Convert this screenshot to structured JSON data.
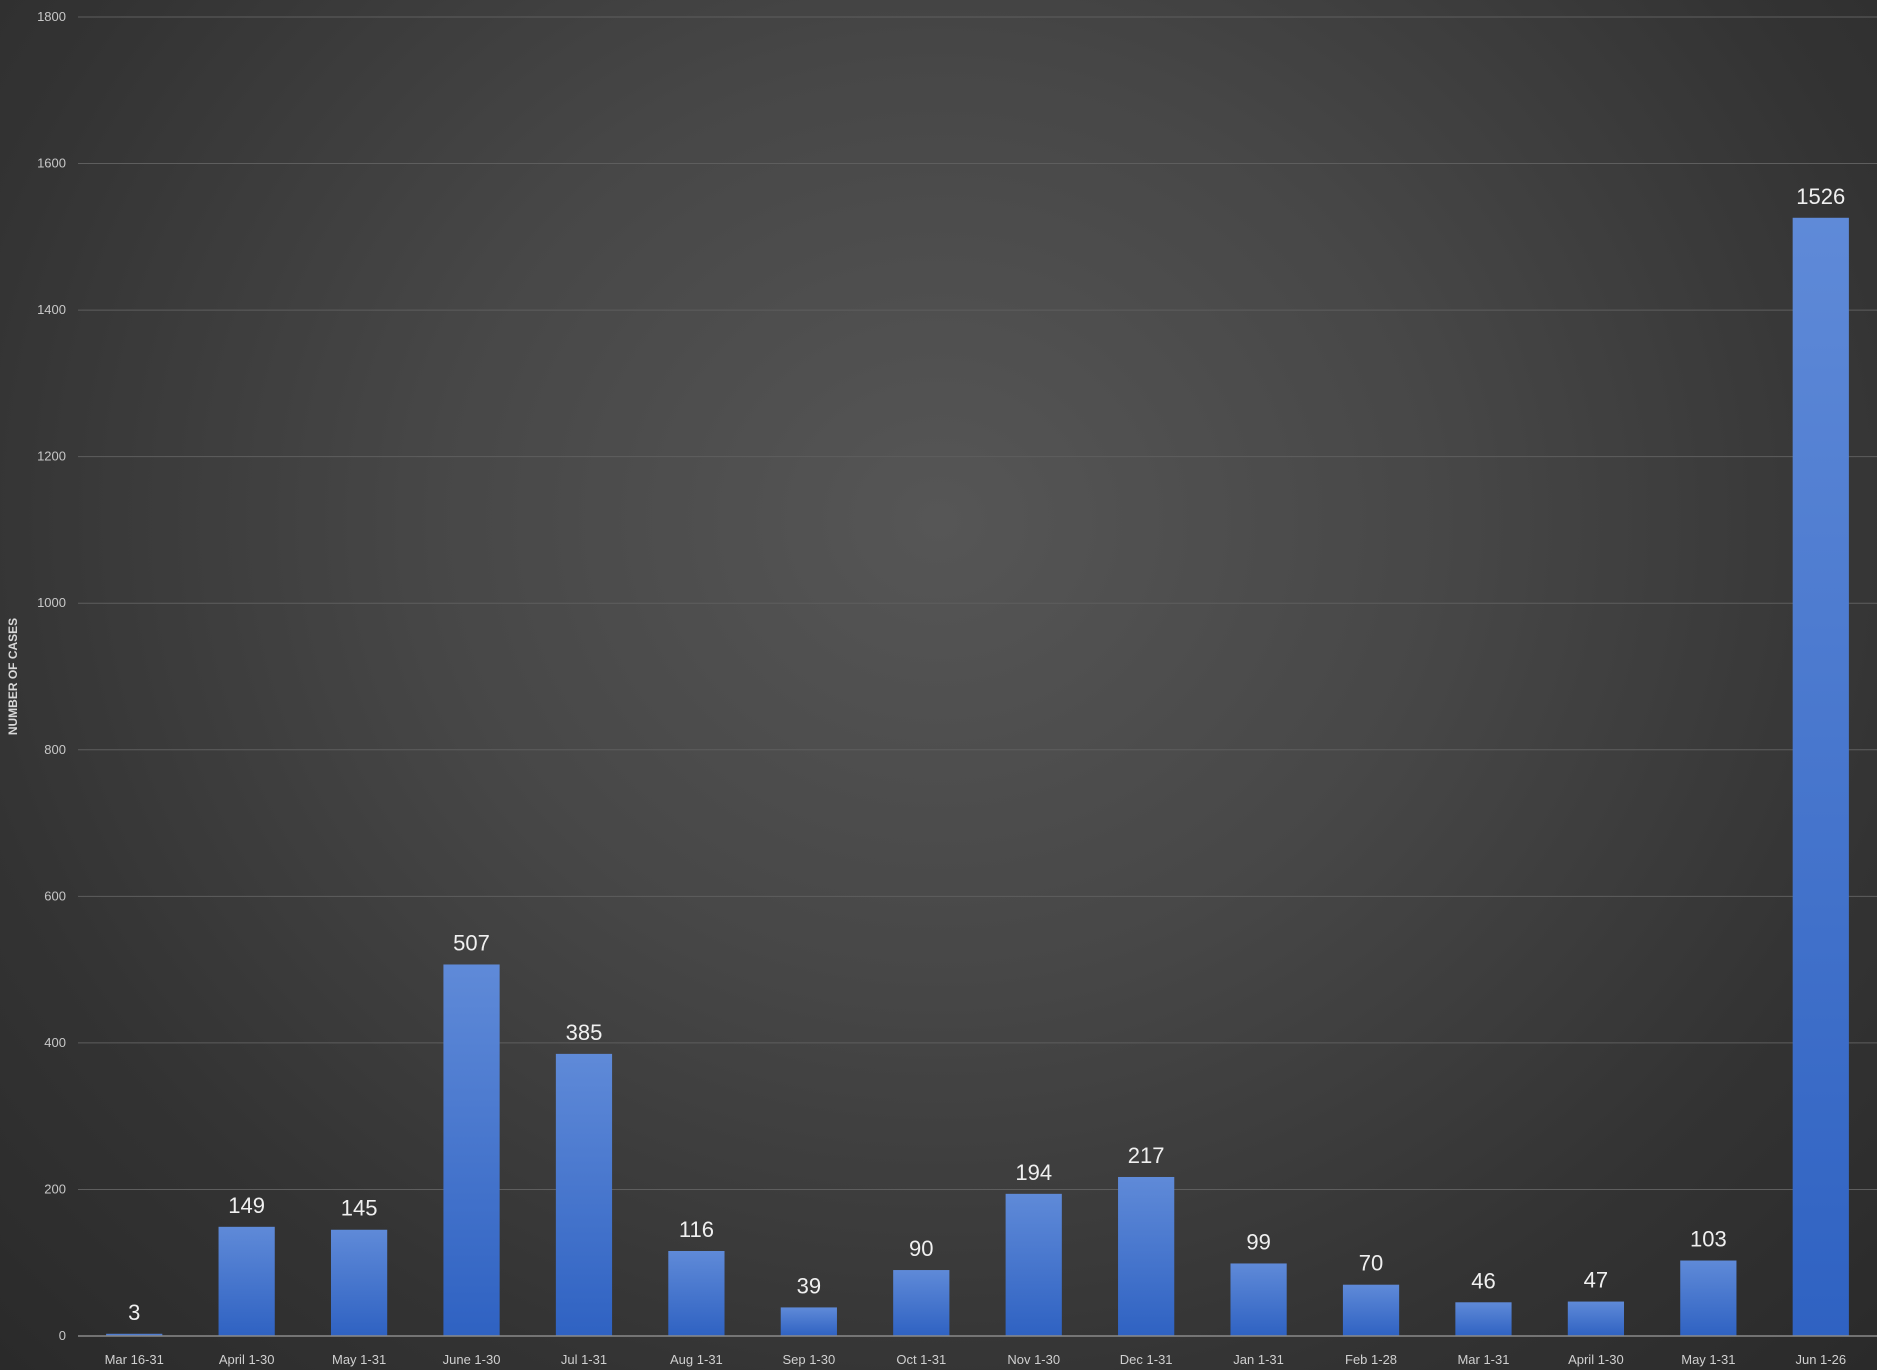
{
  "chart_data": {
    "type": "bar",
    "ylabel": "NUMBER OF CASES",
    "ylim": [
      0,
      1800
    ],
    "yticks": [
      0,
      200,
      400,
      600,
      800,
      1000,
      1200,
      1400,
      1600,
      1800
    ],
    "grid": true,
    "categories": [
      "Mar 16-31",
      "April 1-30",
      "May 1-31",
      "June 1-30",
      "Jul 1-31",
      "Aug 1-31",
      "Sep 1-30",
      "Oct 1-31",
      "Nov 1-30",
      "Dec 1-31",
      "Jan 1-31",
      "Feb 1-28",
      "Mar 1-31",
      "April 1-30",
      "May 1-31",
      "Jun 1-26"
    ],
    "values": [
      3,
      149,
      145,
      507,
      385,
      116,
      39,
      90,
      194,
      217,
      99,
      70,
      46,
      47,
      103,
      1526
    ],
    "bar_color": "#4472c4"
  }
}
